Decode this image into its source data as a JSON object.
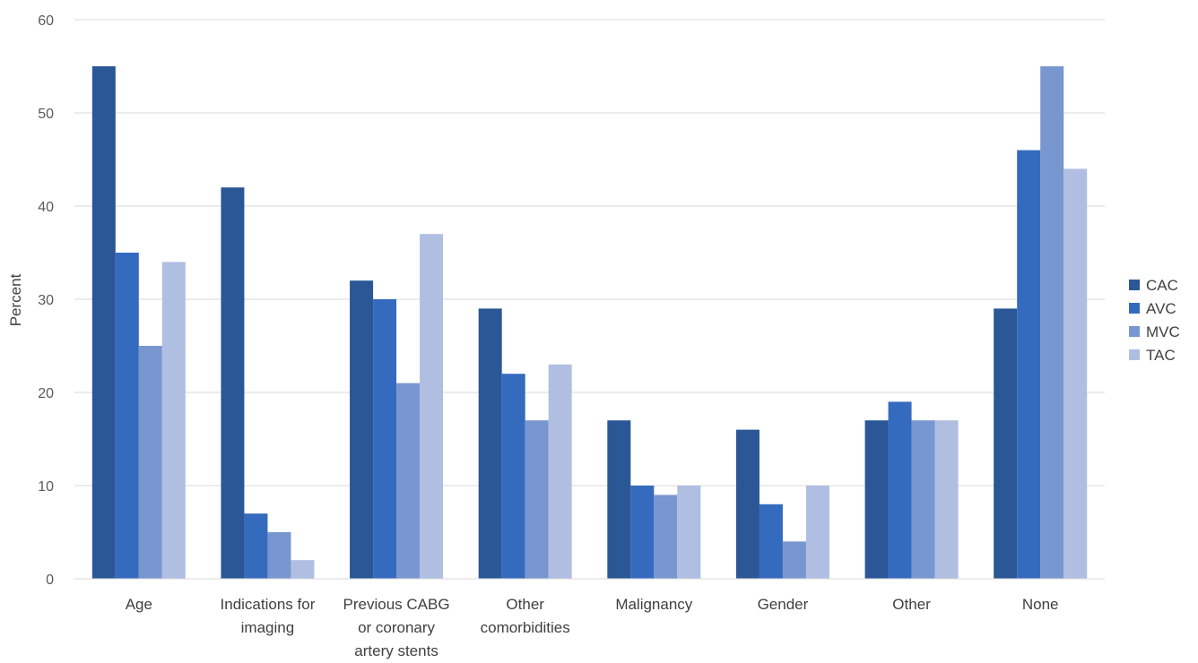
{
  "chart_data": {
    "type": "bar",
    "title": "",
    "xlabel": "",
    "ylabel": "Percent",
    "ylim": [
      0,
      60
    ],
    "yticks": [
      0,
      10,
      20,
      30,
      40,
      50,
      60
    ],
    "grid": true,
    "legend_position": "right",
    "categories": [
      [
        "Age"
      ],
      [
        "Indications for",
        "imaging"
      ],
      [
        "Previous CABG",
        "or coronary",
        "artery stents"
      ],
      [
        "Other",
        "comorbidities"
      ],
      [
        "Malignancy"
      ],
      [
        "Gender"
      ],
      [
        "Other"
      ],
      [
        "None"
      ]
    ],
    "series": [
      {
        "name": "CAC",
        "color": "#2b5797",
        "values": [
          55,
          42,
          32,
          29,
          17,
          16,
          17,
          29
        ]
      },
      {
        "name": "AVC",
        "color": "#356bbf",
        "values": [
          35,
          7,
          30,
          22,
          10,
          8,
          19,
          46
        ]
      },
      {
        "name": "MVC",
        "color": "#7896cf",
        "values": [
          25,
          5,
          21,
          17,
          9,
          4,
          17,
          55
        ]
      },
      {
        "name": "TAC",
        "color": "#b0bee2",
        "values": [
          34,
          2,
          37,
          23,
          10,
          10,
          17,
          44
        ]
      }
    ]
  }
}
